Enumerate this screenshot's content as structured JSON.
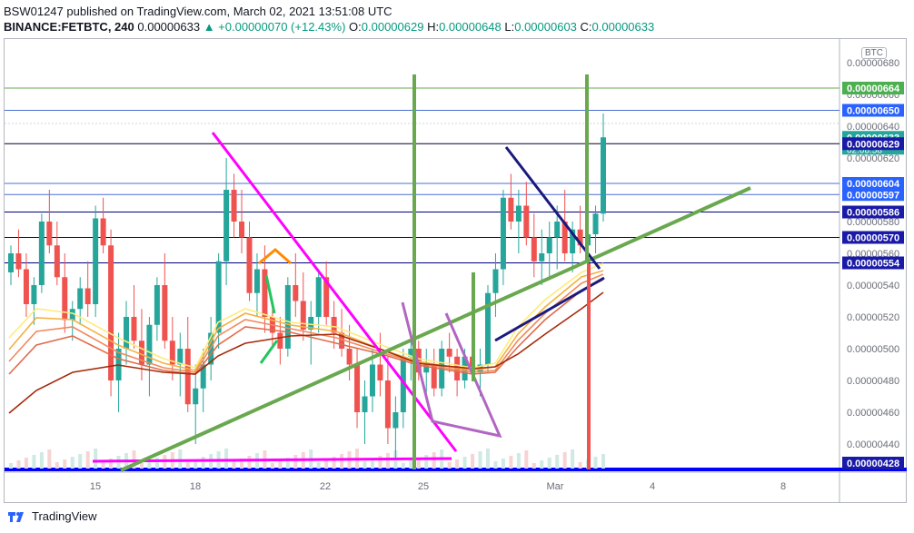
{
  "header": {
    "line1": "BSW01247 published on TradingView.com, March 02, 2021 13:51:08 UTC",
    "symbol": "BINANCE:FETBTC, 240",
    "last": "0.00000633",
    "change": "▲ +0.00000070 (+12.43%)",
    "o_label": "O:",
    "o": "0.00000629",
    "h_label": "H:",
    "h": "0.00000648",
    "l_label": "L:",
    "l": "0.00000603",
    "c_label": "C:",
    "c": "0.00000633"
  },
  "footer": {
    "brand": "TradingView"
  },
  "currency_badge": "BTC",
  "colors": {
    "up": "#26a69a",
    "down": "#ef5350",
    "magenta": "#ff00ff",
    "green_line": "#6aa84f",
    "navy": "#1a1a7e",
    "price_axis_blue": "#0000ff",
    "green_label": "#4caf50",
    "teal_label": "#26a69a"
  },
  "chart_data": {
    "type": "candlestick",
    "x_tick_labels": [
      "15",
      "18",
      "22",
      "25",
      "Mar",
      "4",
      "8"
    ],
    "y_tick_labels": [
      "0.00000680",
      "0.00000660",
      "0.00000640",
      "0.00000620",
      "0.00000600",
      "0.00000580",
      "0.00000560",
      "0.00000540",
      "0.00000520",
      "0.00000500",
      "0.00000480",
      "0.00000460",
      "0.00000440"
    ],
    "ylim": [
      4.26e-06,
      6.85e-06
    ],
    "price_labels": [
      {
        "text": "0.00000664",
        "kind": "green"
      },
      {
        "text": "0.00000650",
        "kind": "blue"
      },
      {
        "text": "0.00000633",
        "sub": "02:08:58",
        "kind": "teal"
      },
      {
        "text": "0.00000629",
        "kind": "navy"
      },
      {
        "text": "0.00000604",
        "kind": "blue"
      },
      {
        "text": "0.00000597",
        "kind": "blue"
      },
      {
        "text": "0.00000586",
        "kind": "navy"
      },
      {
        "text": "0.00000570",
        "kind": "navy"
      },
      {
        "text": "0.00000554",
        "kind": "navy"
      },
      {
        "text": "0.00000428",
        "kind": "navy"
      }
    ],
    "candles_approx": [
      [
        548,
        565,
        540,
        560
      ],
      [
        560,
        575,
        545,
        550
      ],
      [
        550,
        560,
        520,
        528
      ],
      [
        528,
        545,
        515,
        540
      ],
      [
        540,
        585,
        535,
        580
      ],
      [
        580,
        600,
        560,
        565
      ],
      [
        565,
        580,
        540,
        545
      ],
      [
        545,
        560,
        510,
        518
      ],
      [
        518,
        530,
        505,
        525
      ],
      [
        525,
        545,
        515,
        538
      ],
      [
        538,
        555,
        520,
        528
      ],
      [
        528,
        590,
        520,
        582
      ],
      [
        582,
        595,
        560,
        565
      ],
      [
        565,
        575,
        470,
        480
      ],
      [
        480,
        510,
        460,
        500
      ],
      [
        500,
        530,
        490,
        520
      ],
      [
        520,
        540,
        500,
        505
      ],
      [
        505,
        525,
        480,
        490
      ],
      [
        490,
        520,
        470,
        515
      ],
      [
        515,
        545,
        505,
        540
      ],
      [
        540,
        560,
        500,
        505
      ],
      [
        505,
        520,
        480,
        490
      ],
      [
        490,
        510,
        470,
        500
      ],
      [
        500,
        520,
        460,
        465
      ],
      [
        465,
        490,
        440,
        475
      ],
      [
        475,
        500,
        460,
        490
      ],
      [
        490,
        520,
        480,
        510
      ],
      [
        510,
        560,
        500,
        555
      ],
      [
        555,
        620,
        540,
        600
      ],
      [
        600,
        610,
        570,
        580
      ],
      [
        580,
        600,
        560,
        570
      ],
      [
        570,
        580,
        530,
        535
      ],
      [
        535,
        560,
        520,
        550
      ],
      [
        550,
        565,
        510,
        520
      ],
      [
        520,
        530,
        500,
        510
      ],
      [
        510,
        520,
        490,
        500
      ],
      [
        500,
        545,
        495,
        540
      ],
      [
        540,
        560,
        520,
        530
      ],
      [
        530,
        548,
        505,
        512
      ],
      [
        512,
        530,
        490,
        520
      ],
      [
        520,
        550,
        510,
        545
      ],
      [
        545,
        555,
        515,
        520
      ],
      [
        520,
        530,
        500,
        510
      ],
      [
        510,
        525,
        495,
        500
      ],
      [
        500,
        515,
        480,
        490
      ],
      [
        490,
        500,
        450,
        460
      ],
      [
        460,
        480,
        440,
        470
      ],
      [
        470,
        500,
        460,
        490
      ],
      [
        490,
        510,
        470,
        480
      ],
      [
        480,
        495,
        440,
        450
      ],
      [
        450,
        470,
        430,
        460
      ],
      [
        460,
        500,
        450,
        495
      ],
      [
        495,
        510,
        480,
        500
      ],
      [
        500,
        505,
        480,
        485
      ],
      [
        485,
        500,
        470,
        490
      ],
      [
        490,
        500,
        470,
        475
      ],
      [
        475,
        505,
        470,
        500
      ],
      [
        500,
        510,
        485,
        495
      ],
      [
        495,
        500,
        470,
        480
      ],
      [
        480,
        500,
        475,
        495
      ],
      [
        495,
        520,
        480,
        485
      ],
      [
        485,
        500,
        470,
        490
      ],
      [
        490,
        540,
        485,
        535
      ],
      [
        535,
        560,
        520,
        550
      ],
      [
        550,
        600,
        540,
        595
      ],
      [
        595,
        610,
        575,
        580
      ],
      [
        580,
        600,
        560,
        590
      ],
      [
        590,
        605,
        565,
        570
      ],
      [
        570,
        585,
        545,
        555
      ],
      [
        555,
        575,
        540,
        560
      ],
      [
        560,
        580,
        545,
        570
      ],
      [
        570,
        590,
        550,
        580
      ],
      [
        580,
        600,
        555,
        560
      ],
      [
        560,
        580,
        548,
        575
      ],
      [
        575,
        590,
        560,
        565
      ],
      [
        565,
        580,
        555,
        572
      ],
      [
        572,
        590,
        560,
        585
      ],
      [
        585,
        648,
        580,
        633
      ]
    ]
  }
}
